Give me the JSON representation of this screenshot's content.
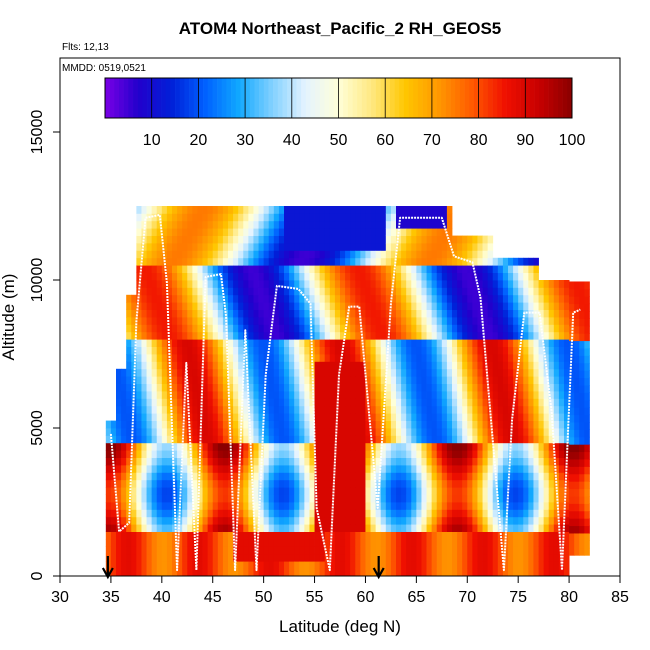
{
  "chart_data": {
    "type": "heatmap",
    "title": "ATOM4 Northeast_Pacific_2 RH_GEOS5",
    "subtitle_flights": "Flts: 12,13",
    "subtitle_dates": "MMDD: 0519,0521",
    "xlabel": "Latitude (deg N)",
    "ylabel": "Altitude (m)",
    "xlim": [
      30,
      85
    ],
    "ylim": [
      0,
      17500
    ],
    "x_ticks": [
      "30",
      "35",
      "40",
      "45",
      "50",
      "55",
      "60",
      "65",
      "70",
      "75",
      "80",
      "85"
    ],
    "y_ticks": [
      "0",
      "5000",
      "10000",
      "15000"
    ],
    "colorbar": {
      "range": [
        0,
        100
      ],
      "tick_labels": [
        "10",
        "20",
        "30",
        "40",
        "50",
        "60",
        "70",
        "80",
        "90",
        "100"
      ],
      "colors": [
        "#7a00e6",
        "#2200cc",
        "#0020d8",
        "#0060ff",
        "#10a8ff",
        "#80d0ff",
        "#e4f3ff",
        "#ffffd8",
        "#ffe880",
        "#ffc600",
        "#ff9800",
        "#ff5a00",
        "#f01000",
        "#c80000",
        "#8a0000"
      ]
    },
    "lat_extent": [
      34.5,
      82
    ],
    "alt_extent": [
      0,
      12500
    ],
    "flight_markers_lat": [
      34.7,
      61.3
    ],
    "flight_track": [
      {
        "lat": 35,
        "alt": 4800
      },
      {
        "lat": 35.8,
        "alt": 1500
      },
      {
        "lat": 36.8,
        "alt": 1800
      },
      {
        "lat": 37.5,
        "alt": 8600
      },
      {
        "lat": 38.4,
        "alt": 12100
      },
      {
        "lat": 39.8,
        "alt": 12200
      },
      {
        "lat": 40.5,
        "alt": 9900
      },
      {
        "lat": 41.5,
        "alt": 200
      },
      {
        "lat": 42.4,
        "alt": 7200
      },
      {
        "lat": 43.4,
        "alt": 200
      },
      {
        "lat": 44.3,
        "alt": 10100
      },
      {
        "lat": 45.8,
        "alt": 10200
      },
      {
        "lat": 46.3,
        "alt": 8800
      },
      {
        "lat": 47.2,
        "alt": 200
      },
      {
        "lat": 48.2,
        "alt": 8300
      },
      {
        "lat": 49.3,
        "alt": 200
      },
      {
        "lat": 50.2,
        "alt": 6800
      },
      {
        "lat": 51.3,
        "alt": 9800
      },
      {
        "lat": 53.4,
        "alt": 9700
      },
      {
        "lat": 54.6,
        "alt": 9200
      },
      {
        "lat": 55.2,
        "alt": 2300
      },
      {
        "lat": 56.5,
        "alt": 200
      },
      {
        "lat": 57.4,
        "alt": 6800
      },
      {
        "lat": 58.4,
        "alt": 9100
      },
      {
        "lat": 59.4,
        "alt": 9100
      },
      {
        "lat": 61.2,
        "alt": 2300
      },
      {
        "lat": 62.5,
        "alt": 9200
      },
      {
        "lat": 63.4,
        "alt": 12100
      },
      {
        "lat": 67.5,
        "alt": 12100
      },
      {
        "lat": 68.7,
        "alt": 10800
      },
      {
        "lat": 70.5,
        "alt": 10600
      },
      {
        "lat": 71.3,
        "alt": 9400
      },
      {
        "lat": 73.6,
        "alt": 200
      },
      {
        "lat": 74.4,
        "alt": 5300
      },
      {
        "lat": 75.6,
        "alt": 8900
      },
      {
        "lat": 77.1,
        "alt": 8900
      },
      {
        "lat": 78.3,
        "alt": 5500
      },
      {
        "lat": 79.3,
        "alt": 200
      },
      {
        "lat": 80.4,
        "alt": 8900
      },
      {
        "lat": 81.1,
        "alt": 9000
      }
    ]
  }
}
